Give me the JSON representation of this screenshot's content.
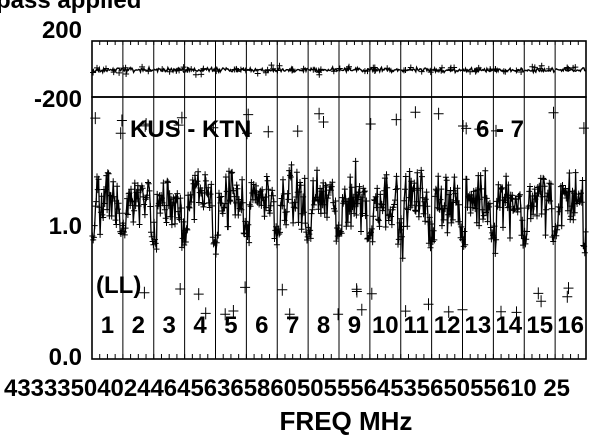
{
  "chart_data": {
    "type": "scatter",
    "title": "pass applied",
    "xlabel": "FREQ MHz",
    "baseline_label": "KUS - KTN",
    "baseline_suffix": "6 - 7",
    "polarization": "(LL)",
    "channels": [
      "1",
      "2",
      "3",
      "4",
      "5",
      "6",
      "7",
      "8",
      "9",
      "10",
      "11",
      "12",
      "13",
      "14",
      "15",
      "16"
    ],
    "x_tick_labels": "4333350402446456365860505556453565055610 25",
    "phase_panel": {
      "yticks": [
        "200",
        "-200"
      ],
      "ylim": [
        -200,
        200
      ],
      "band_center_deg": 0
    },
    "amp_panel": {
      "yticks": [
        "1.0",
        "0.0"
      ],
      "ylim": [
        0.0,
        1.8
      ],
      "mean": 1.1,
      "spread_low": 0.5,
      "spread_high": 1.55
    },
    "grid": true,
    "marker": "plus"
  }
}
